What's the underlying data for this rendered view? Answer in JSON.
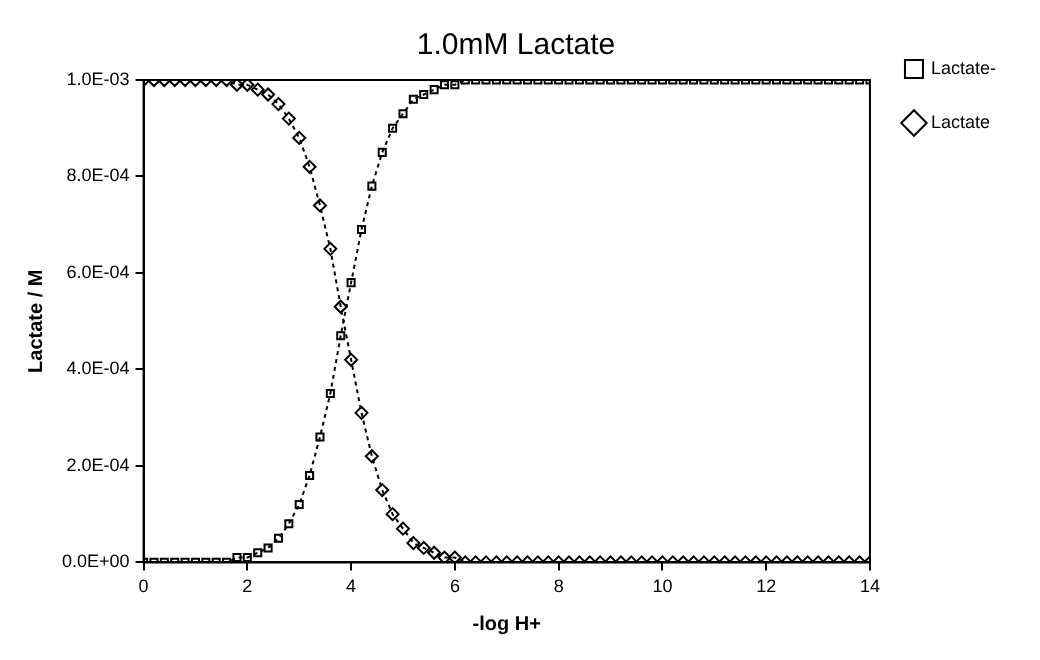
{
  "chart_data": {
    "type": "line",
    "title": "1.0mM Lactate",
    "xlabel": "-log H+",
    "ylabel": "Lactate / M",
    "x": [
      0,
      0.2,
      0.4,
      0.6,
      0.8,
      1,
      1.2,
      1.4,
      1.6,
      1.8,
      2,
      2.2,
      2.4,
      2.6,
      2.8,
      3,
      3.2,
      3.4,
      3.6,
      3.8,
      4,
      4.2,
      4.4,
      4.6,
      4.8,
      5,
      5.2,
      5.4,
      5.6,
      5.8,
      6,
      6.2,
      6.4,
      6.6,
      6.8,
      7,
      7.2,
      7.4,
      7.6,
      7.8,
      8,
      8.2,
      8.4,
      8.6,
      8.8,
      9,
      9.2,
      9.4,
      9.6,
      9.8,
      10,
      10.2,
      10.4,
      10.6,
      10.8,
      11,
      11.2,
      11.4,
      11.6,
      11.8,
      12,
      12.2,
      12.4,
      12.6,
      12.8,
      13,
      13.2,
      13.4,
      13.6,
      13.8,
      14
    ],
    "series": [
      {
        "name": "Lactate-",
        "color": "#000000",
        "marker": "square",
        "values": [
          0,
          0,
          0,
          0,
          0,
          0,
          0,
          0,
          0,
          1e-05,
          1e-05,
          2e-05,
          3e-05,
          5e-05,
          8e-05,
          0.00012,
          0.00018,
          0.00026,
          0.00035,
          0.00047,
          0.00058,
          0.00069,
          0.00078,
          0.00085,
          0.0009,
          0.00093,
          0.00096,
          0.00097,
          0.00098,
          0.00099,
          0.00099,
          0.001,
          0.001,
          0.001,
          0.001,
          0.001,
          0.001,
          0.001,
          0.001,
          0.001,
          0.001,
          0.001,
          0.001,
          0.001,
          0.001,
          0.001,
          0.001,
          0.001,
          0.001,
          0.001,
          0.001,
          0.001,
          0.001,
          0.001,
          0.001,
          0.001,
          0.001,
          0.001,
          0.001,
          0.001,
          0.001,
          0.001,
          0.001,
          0.001,
          0.001,
          0.001,
          0.001,
          0.001,
          0.001,
          0.001,
          0.001
        ]
      },
      {
        "name": "Lactate",
        "color": "#000000",
        "marker": "diamond",
        "values": [
          0.001,
          0.001,
          0.001,
          0.001,
          0.001,
          0.001,
          0.001,
          0.001,
          0.001,
          0.00099,
          0.00099,
          0.00098,
          0.00097,
          0.00095,
          0.00092,
          0.00088,
          0.00082,
          0.00074,
          0.00065,
          0.00053,
          0.00042,
          0.00031,
          0.00022,
          0.00015,
          0.0001,
          7e-05,
          4e-05,
          3e-05,
          2e-05,
          1e-05,
          1e-05,
          0,
          0,
          0,
          0,
          0,
          0,
          0,
          0,
          0,
          0,
          0,
          0,
          0,
          0,
          0,
          0,
          0,
          0,
          0,
          0,
          0,
          0,
          0,
          0,
          0,
          0,
          0,
          0,
          0,
          0,
          0,
          0,
          0,
          0,
          0,
          0,
          0,
          0,
          0,
          0
        ]
      }
    ],
    "xlim": [
      0,
      14
    ],
    "xticks": [
      0,
      2,
      4,
      6,
      8,
      10,
      12,
      14
    ],
    "ylim": [
      0,
      0.001
    ],
    "yticks": [
      {
        "value": 0,
        "label": "0.0E+00"
      },
      {
        "value": 0.0002,
        "label": "2.0E-04"
      },
      {
        "value": 0.0004,
        "label": "4.0E-04"
      },
      {
        "value": 0.0006,
        "label": "6.0E-04"
      },
      {
        "value": 0.0008,
        "label": "8.0E-04"
      },
      {
        "value": 0.001,
        "label": "1.0E-03"
      }
    ],
    "grid": false,
    "legend": "right",
    "line_style": "dotted"
  }
}
